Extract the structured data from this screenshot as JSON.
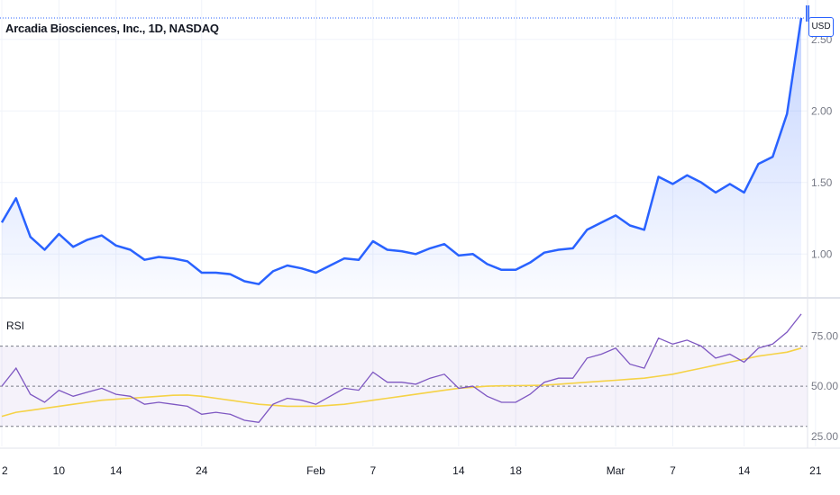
{
  "header": {
    "title": "Arcadia Biosciences, Inc., 1D, NASDAQ",
    "currency": "USD"
  },
  "indicator": {
    "label": "RSI"
  },
  "chart_data": [
    {
      "type": "area",
      "title": "Arcadia Biosciences, Inc., 1D, NASDAQ",
      "ylim": [
        0.7,
        2.7
      ],
      "y_ticks": [
        "1.00",
        "1.50",
        "2.00",
        "2.50"
      ],
      "y_tick_values": [
        1.0,
        1.5,
        2.0,
        2.5
      ],
      "x_ticks": [
        "2",
        "10",
        "14",
        "24",
        "Feb",
        "7",
        "14",
        "18",
        "Mar",
        "7",
        "14",
        "21"
      ],
      "x_tick_indices": [
        0,
        4,
        8,
        14,
        22,
        26,
        32,
        36,
        43,
        47,
        52,
        57
      ],
      "series": [
        {
          "color": "#2962ff",
          "values": [
            1.22,
            1.39,
            1.12,
            1.03,
            1.14,
            1.05,
            1.1,
            1.13,
            1.06,
            1.03,
            0.96,
            0.98,
            0.97,
            0.95,
            0.87,
            0.87,
            0.86,
            0.81,
            0.79,
            0.88,
            0.92,
            0.9,
            0.87,
            0.92,
            0.97,
            0.96,
            1.09,
            1.03,
            1.02,
            1.0,
            1.04,
            1.07,
            0.99,
            1.0,
            0.93,
            0.89,
            0.89,
            0.94,
            1.01,
            1.03,
            1.04,
            1.17,
            1.22,
            1.27,
            1.2,
            1.17,
            1.54,
            1.49,
            1.55,
            1.5,
            1.43,
            1.49,
            1.43,
            1.63,
            1.68,
            1.98,
            2.65
          ]
        }
      ]
    },
    {
      "type": "line",
      "title": "RSI",
      "ylim": [
        20,
        90
      ],
      "y_ticks": [
        "25.00",
        "50.00",
        "75.00"
      ],
      "y_tick_values": [
        25,
        50,
        75
      ],
      "bands": [
        30,
        50,
        70
      ],
      "series": [
        {
          "color": "#7e57c2",
          "values": [
            50,
            59,
            46,
            42,
            48,
            45,
            47,
            49,
            46,
            45,
            41,
            42,
            41,
            40,
            36,
            37,
            36,
            33,
            32,
            41,
            44,
            43,
            41,
            45,
            49,
            48,
            57,
            52,
            52,
            51,
            54,
            56,
            49,
            50,
            45,
            42,
            42,
            46,
            52,
            54,
            54,
            64,
            66,
            69,
            61,
            59,
            74,
            71,
            73,
            70,
            64,
            66,
            62,
            69,
            71,
            77,
            86
          ]
        },
        {
          "color": "#f5d246",
          "values": [
            35,
            37,
            38,
            39,
            40,
            41,
            42,
            43,
            43.5,
            44,
            44.5,
            45,
            45.5,
            45.6,
            45,
            44,
            43,
            42,
            41,
            40.5,
            40,
            40,
            40,
            40.5,
            41,
            42,
            43,
            44,
            45,
            46,
            47,
            48,
            49,
            49.5,
            50,
            50.2,
            50.3,
            50.4,
            50.5,
            51,
            51.5,
            52,
            52.5,
            53,
            53.5,
            54,
            55,
            56,
            57.5,
            59,
            60.5,
            62,
            63.5,
            65,
            66,
            67,
            69
          ]
        }
      ]
    }
  ]
}
